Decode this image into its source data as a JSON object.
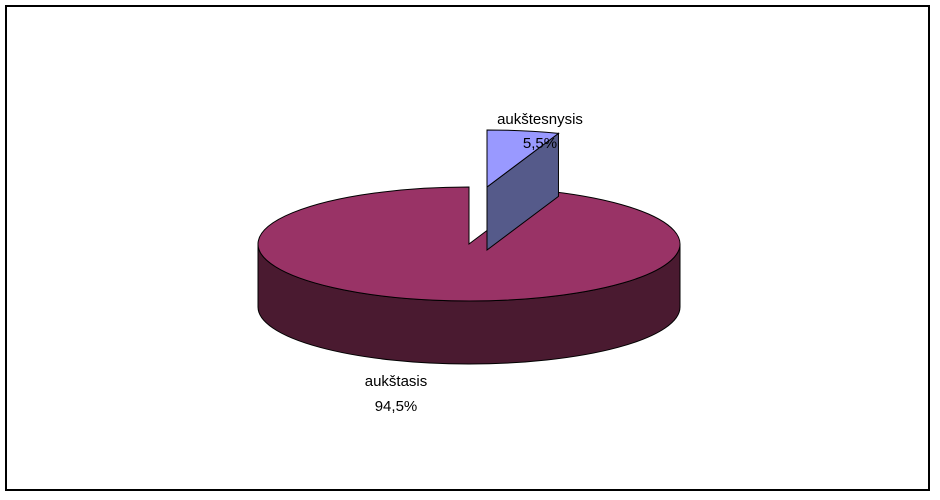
{
  "chart_data": {
    "type": "pie",
    "title": "",
    "slices": [
      {
        "label": "aukštasis",
        "percent": "94,5%",
        "value": 94.5,
        "color": "#993366",
        "side_color": "#4a1a30"
      },
      {
        "label": "aukštesnysis",
        "percent": "5,5%",
        "value": 5.5,
        "color": "#9999ff",
        "side_color": "#555a8a",
        "exploded": true
      }
    ],
    "legend": "none",
    "style": "3d-exploded"
  }
}
